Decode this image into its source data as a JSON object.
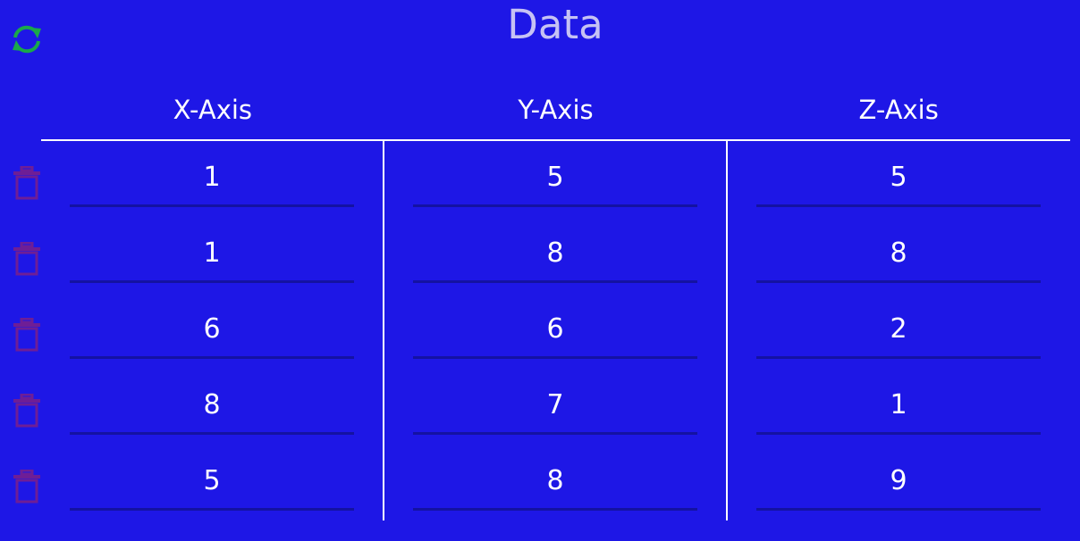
{
  "title": "Data",
  "icons": {
    "refresh": "refresh-icon",
    "delete": "trash-icon"
  },
  "colors": {
    "background": "#1e17e6",
    "title": "#c6c2f4",
    "refresh_icon": "#1aa84a",
    "delete_icon": "#6e1e96",
    "field_underline": "#1412a2"
  },
  "columns": [
    {
      "label": "X-Axis"
    },
    {
      "label": "Y-Axis"
    },
    {
      "label": "Z-Axis"
    }
  ],
  "rows": [
    {
      "x": "1",
      "y": "5",
      "z": "5"
    },
    {
      "x": "1",
      "y": "8",
      "z": "8"
    },
    {
      "x": "6",
      "y": "6",
      "z": "2"
    },
    {
      "x": "8",
      "y": "7",
      "z": "1"
    },
    {
      "x": "5",
      "y": "8",
      "z": "9"
    }
  ]
}
